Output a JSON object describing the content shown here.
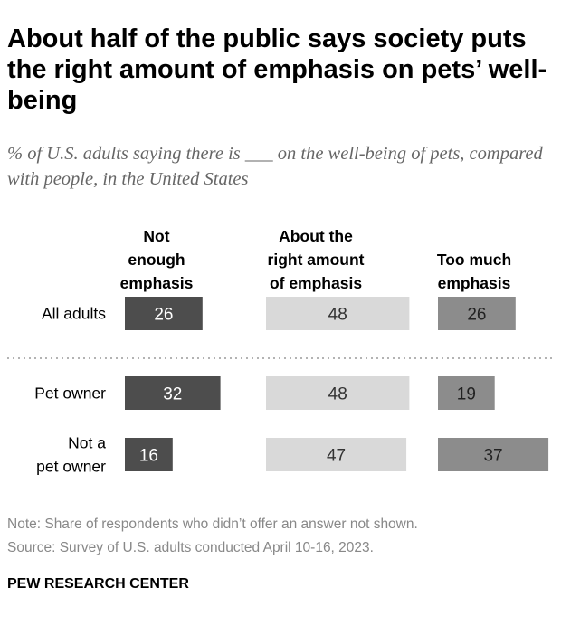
{
  "title": "About half of the public says society puts the right amount of emphasis on pets’ well-being",
  "subtitle": "% of U.S. adults saying there is ___ on the well-being of pets, compared with people, in the United States",
  "chart_data": {
    "type": "bar",
    "categories": [
      "All adults",
      "Pet owner",
      "Not a pet owner"
    ],
    "category_lines": [
      [
        "All adults"
      ],
      [
        "Pet owner"
      ],
      [
        "Not a",
        "pet owner"
      ]
    ],
    "series": [
      {
        "name": "Not enough emphasis",
        "header_lines": [
          "Not",
          "enough",
          "emphasis"
        ],
        "values": [
          26,
          32,
          16
        ],
        "color": "#4d4d4d",
        "text_color": "#ffffff"
      },
      {
        "name": "About the right amount of emphasis",
        "header_lines": [
          "About the",
          "right amount",
          "of emphasis"
        ],
        "values": [
          48,
          48,
          47
        ],
        "color": "#d9d9d9",
        "text_color": "#333333"
      },
      {
        "name": "Too much emphasis",
        "header_lines": [
          "Too much",
          "emphasis"
        ],
        "values": [
          26,
          19,
          37
        ],
        "color": "#8c8c8c",
        "text_color": "#222222"
      }
    ],
    "divider_after_row": 0,
    "grid": false
  },
  "note": "Note: Share of respondents who didn’t offer an answer not shown.",
  "source": "Source: Survey of U.S. adults conducted April 10-16, 2023.",
  "brand": "PEW RESEARCH CENTER"
}
